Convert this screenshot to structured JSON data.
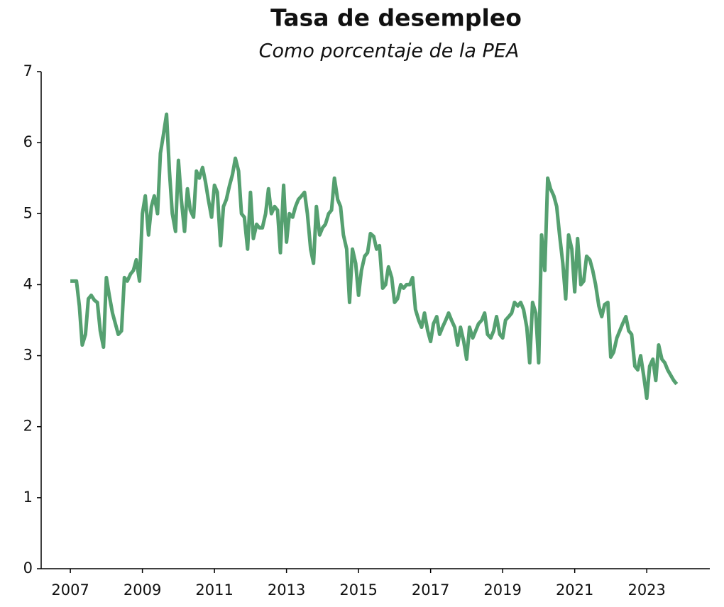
{
  "chart_data": {
    "type": "line",
    "title": "Tasa de desempleo",
    "subtitle": "Como porcentaje de la PEA",
    "color": "#55a070",
    "xlim": [
      2006.19,
      2024.75
    ],
    "xticks": [
      2007,
      2009,
      2011,
      2013,
      2015,
      2017,
      2019,
      2021,
      2023
    ],
    "ylim": [
      0,
      7
    ],
    "yticks": [
      0,
      1,
      2,
      3,
      4,
      5,
      6,
      7
    ],
    "grid": false,
    "x": [
      2007,
      2007.08,
      2007.17,
      2007.25,
      2007.33,
      2007.42,
      2007.5,
      2007.58,
      2007.67,
      2007.75,
      2007.83,
      2007.92,
      2008,
      2008.08,
      2008.17,
      2008.25,
      2008.33,
      2008.42,
      2008.5,
      2008.58,
      2008.67,
      2008.75,
      2008.83,
      2008.92,
      2009,
      2009.08,
      2009.17,
      2009.25,
      2009.33,
      2009.42,
      2009.5,
      2009.58,
      2009.67,
      2009.75,
      2009.83,
      2009.92,
      2010,
      2010.08,
      2010.17,
      2010.25,
      2010.33,
      2010.42,
      2010.5,
      2010.58,
      2010.67,
      2010.75,
      2010.83,
      2010.92,
      2011,
      2011.08,
      2011.17,
      2011.25,
      2011.33,
      2011.42,
      2011.5,
      2011.58,
      2011.67,
      2011.75,
      2011.83,
      2011.92,
      2012,
      2012.08,
      2012.17,
      2012.25,
      2012.33,
      2012.42,
      2012.5,
      2012.58,
      2012.67,
      2012.75,
      2012.83,
      2012.92,
      2013,
      2013.08,
      2013.17,
      2013.25,
      2013.33,
      2013.42,
      2013.5,
      2013.58,
      2013.67,
      2013.75,
      2013.83,
      2013.92,
      2014,
      2014.08,
      2014.17,
      2014.25,
      2014.33,
      2014.42,
      2014.5,
      2014.58,
      2014.67,
      2014.75,
      2014.83,
      2014.92,
      2015,
      2015.08,
      2015.17,
      2015.25,
      2015.33,
      2015.42,
      2015.5,
      2015.58,
      2015.67,
      2015.75,
      2015.83,
      2015.92,
      2016,
      2016.08,
      2016.17,
      2016.25,
      2016.33,
      2016.42,
      2016.5,
      2016.58,
      2016.67,
      2016.75,
      2016.83,
      2016.92,
      2017,
      2017.08,
      2017.17,
      2017.25,
      2017.33,
      2017.42,
      2017.5,
      2017.58,
      2017.67,
      2017.75,
      2017.83,
      2017.92,
      2018,
      2018.08,
      2018.17,
      2018.25,
      2018.33,
      2018.42,
      2018.5,
      2018.58,
      2018.67,
      2018.75,
      2018.83,
      2018.92,
      2019,
      2019.08,
      2019.17,
      2019.25,
      2019.33,
      2019.42,
      2019.5,
      2019.58,
      2019.67,
      2019.75,
      2019.83,
      2019.92,
      2020,
      2020.08,
      2020.17,
      2020.25,
      2020.33,
      2020.42,
      2020.5,
      2020.58,
      2020.67,
      2020.75,
      2020.83,
      2020.92,
      2021,
      2021.08,
      2021.17,
      2021.25,
      2021.33,
      2021.42,
      2021.5,
      2021.58,
      2021.67,
      2021.75,
      2021.83,
      2021.92,
      2022,
      2022.08,
      2022.17,
      2022.25,
      2022.33,
      2022.42,
      2022.5,
      2022.58,
      2022.67,
      2022.75,
      2022.83,
      2022.92,
      2023,
      2023.08,
      2023.17,
      2023.25,
      2023.33,
      2023.42,
      2023.5,
      2023.58,
      2023.67,
      2023.75,
      2023.83
    ],
    "values": [
      4.05,
      4.05,
      4.05,
      3.7,
      3.15,
      3.3,
      3.8,
      3.85,
      3.78,
      3.75,
      3.35,
      3.12,
      4.1,
      3.85,
      3.6,
      3.45,
      3.3,
      3.35,
      4.1,
      4.05,
      4.15,
      4.2,
      4.35,
      4.05,
      5.0,
      5.25,
      4.7,
      5.1,
      5.25,
      5.0,
      5.85,
      6.1,
      6.4,
      5.6,
      5.0,
      4.75,
      5.75,
      5.2,
      4.75,
      5.35,
      5.05,
      4.95,
      5.6,
      5.5,
      5.65,
      5.45,
      5.2,
      4.95,
      5.4,
      5.3,
      4.55,
      5.1,
      5.2,
      5.4,
      5.55,
      5.78,
      5.6,
      5.0,
      4.95,
      4.5,
      5.3,
      4.65,
      4.85,
      4.8,
      4.8,
      5.0,
      5.35,
      5.0,
      5.1,
      5.05,
      4.45,
      5.4,
      4.6,
      5.0,
      4.95,
      5.1,
      5.2,
      5.25,
      5.3,
      5.0,
      4.5,
      4.3,
      5.1,
      4.7,
      4.8,
      4.85,
      5.0,
      5.05,
      5.5,
      5.2,
      5.1,
      4.7,
      4.5,
      3.75,
      4.5,
      4.3,
      3.85,
      4.2,
      4.4,
      4.45,
      4.72,
      4.68,
      4.5,
      4.55,
      3.95,
      4.0,
      4.25,
      4.1,
      3.75,
      3.8,
      4.0,
      3.95,
      4.0,
      4.0,
      4.1,
      3.65,
      3.5,
      3.4,
      3.6,
      3.35,
      3.2,
      3.45,
      3.55,
      3.3,
      3.4,
      3.5,
      3.6,
      3.5,
      3.4,
      3.15,
      3.4,
      3.2,
      2.95,
      3.4,
      3.25,
      3.35,
      3.45,
      3.5,
      3.6,
      3.3,
      3.25,
      3.35,
      3.55,
      3.3,
      3.25,
      3.5,
      3.55,
      3.6,
      3.75,
      3.7,
      3.75,
      3.65,
      3.4,
      2.9,
      3.75,
      3.6,
      2.9,
      4.7,
      4.2,
      5.5,
      5.35,
      5.25,
      5.1,
      4.7,
      4.3,
      3.8,
      4.7,
      4.5,
      3.9,
      4.65,
      4.0,
      4.05,
      4.4,
      4.35,
      4.2,
      4.0,
      3.7,
      3.55,
      3.72,
      3.75,
      2.98,
      3.05,
      3.25,
      3.35,
      3.45,
      3.55,
      3.35,
      3.3,
      2.85,
      2.8,
      3.0,
      2.7,
      2.4,
      2.85,
      2.95,
      2.65,
      3.15,
      2.95,
      2.9,
      2.8,
      2.72,
      2.65,
      2.6
    ]
  }
}
